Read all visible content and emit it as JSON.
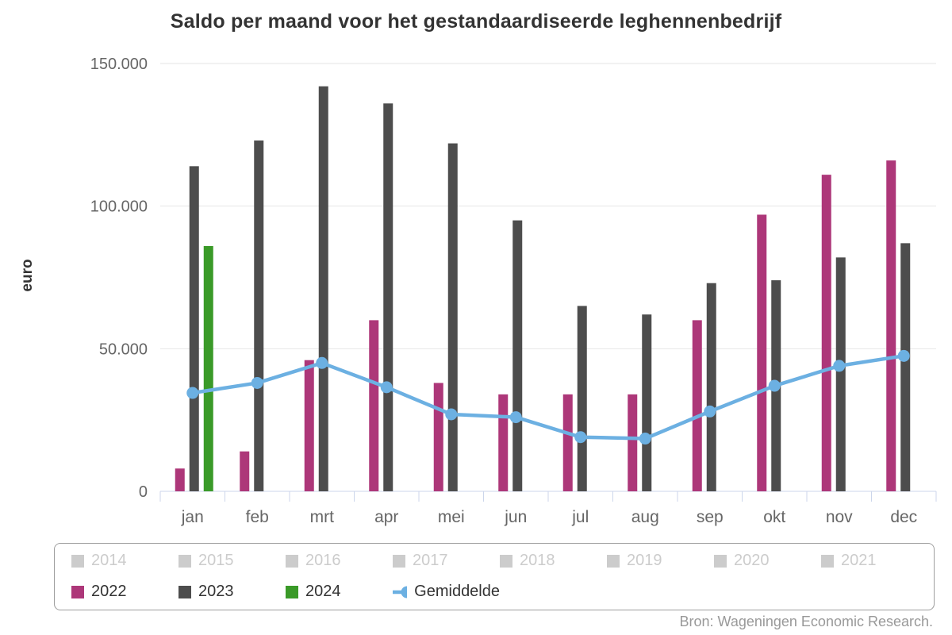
{
  "source": "Bron: Wageningen Economic Research.",
  "chart_data": {
    "type": "bar",
    "title": "Saldo per maand voor het gestandaardiseerde leghennenbedrijf",
    "xlabel": "",
    "ylabel": "euro",
    "ylim": [
      0,
      150000
    ],
    "grid": true,
    "legend_position": "bottom",
    "categories": [
      "jan",
      "feb",
      "mrt",
      "apr",
      "mei",
      "jun",
      "jul",
      "aug",
      "sep",
      "okt",
      "nov",
      "dec"
    ],
    "y_ticks": [
      {
        "value": 0,
        "label": "0"
      },
      {
        "value": 50000,
        "label": "50.000"
      },
      {
        "value": 100000,
        "label": "100.000"
      },
      {
        "value": 150000,
        "label": "150.000"
      }
    ],
    "series": [
      {
        "name": "2014",
        "type": "column",
        "visible": false,
        "values": []
      },
      {
        "name": "2015",
        "type": "column",
        "visible": false,
        "values": []
      },
      {
        "name": "2016",
        "type": "column",
        "visible": false,
        "values": []
      },
      {
        "name": "2017",
        "type": "column",
        "visible": false,
        "values": []
      },
      {
        "name": "2018",
        "type": "column",
        "visible": false,
        "values": []
      },
      {
        "name": "2019",
        "type": "column",
        "visible": false,
        "values": []
      },
      {
        "name": "2020",
        "type": "column",
        "visible": false,
        "values": []
      },
      {
        "name": "2021",
        "type": "column",
        "visible": false,
        "values": []
      },
      {
        "name": "2022",
        "type": "column",
        "visible": true,
        "color": "#ad3779",
        "values": [
          8000,
          14000,
          46000,
          60000,
          38000,
          34000,
          34000,
          34000,
          60000,
          97000,
          111000,
          116000
        ]
      },
      {
        "name": "2023",
        "type": "column",
        "visible": true,
        "color": "#4d4d4d",
        "values": [
          114000,
          123000,
          142000,
          136000,
          122000,
          95000,
          65000,
          62000,
          73000,
          74000,
          82000,
          87000
        ]
      },
      {
        "name": "2024",
        "type": "column",
        "visible": true,
        "color": "#3a9a28",
        "values": [
          86000,
          null,
          null,
          null,
          null,
          null,
          null,
          null,
          null,
          null,
          null,
          null
        ]
      },
      {
        "name": "Gemiddelde",
        "type": "line",
        "visible": true,
        "color": "#6cb0e2",
        "values": [
          34500,
          38000,
          45000,
          36500,
          27000,
          26000,
          19000,
          18500,
          28000,
          37000,
          44000,
          47500
        ]
      }
    ],
    "style": {
      "grid_color": "#e6e6e6",
      "axis_line_color": "#ccd6eb",
      "axis_text_color": "#666666",
      "disabled_legend_color": "#cccccc",
      "title_color": "#333333"
    }
  }
}
